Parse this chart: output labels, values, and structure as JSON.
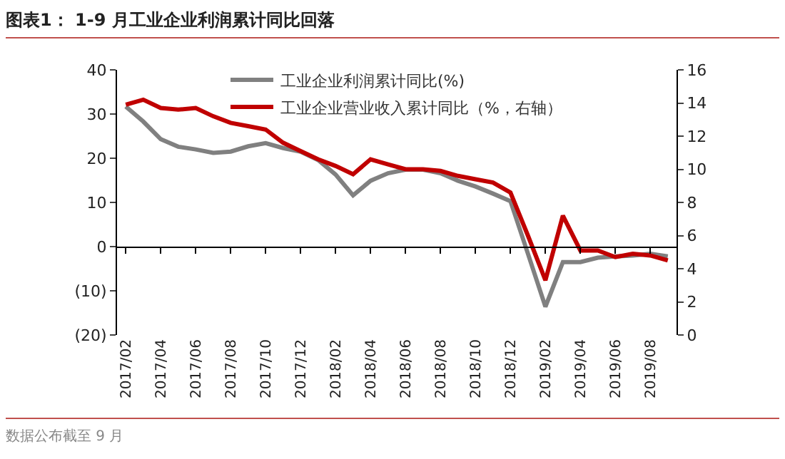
{
  "chart_data": {
    "type": "line",
    "title": "图表1： 1-9 月工业企业利润累计同比回落",
    "annotations": [
      "数据公布截至 9 月"
    ],
    "categories": [
      "2017/02",
      null,
      "2017/04",
      null,
      "2017/06",
      null,
      "2017/08",
      null,
      "2017/10",
      null,
      "2017/12",
      null,
      "2018/02",
      null,
      "2018/04",
      null,
      "2018/06",
      null,
      "2018/08",
      null,
      "2018/10",
      null,
      "2018/12",
      null,
      "2019/02",
      null,
      "2019/04",
      null,
      "2019/06",
      null,
      "2019/08",
      null
    ],
    "series": [
      {
        "name": "工业企业利润累计同比(%)",
        "color": "#808080",
        "values": [
          31.7,
          28.3,
          24.3,
          22.6,
          22.0,
          21.2,
          21.5,
          22.7,
          23.4,
          22.3,
          21.5,
          19.6,
          16.3,
          11.6,
          14.9,
          16.6,
          17.4,
          17.4,
          16.6,
          14.9,
          13.6,
          12.0,
          10.3,
          -1.6,
          -13.6,
          -3.5,
          -3.5,
          -2.5,
          -2.2,
          -2.0,
          -1.6,
          -2.2
        ]
      },
      {
        "name": "工业企业营业收入累计同比（%，右轴）",
        "color": "#c00000",
        "axis": "y2",
        "values": [
          13.9,
          14.2,
          13.7,
          13.6,
          13.7,
          13.2,
          12.8,
          12.6,
          12.4,
          11.6,
          11.1,
          10.6,
          10.2,
          9.7,
          10.6,
          10.3,
          10.0,
          10.0,
          9.9,
          9.6,
          9.4,
          9.2,
          8.6,
          6.0,
          3.3,
          7.2,
          5.1,
          5.1,
          4.7,
          4.9,
          4.8,
          4.5
        ]
      }
    ],
    "ylim": [
      -20,
      40
    ],
    "yticks": [
      {
        "value": -20,
        "label": "(20)"
      },
      {
        "value": -10,
        "label": "(10)"
      },
      0,
      10,
      20,
      30,
      40
    ],
    "y2lim": [
      0,
      16
    ],
    "y2ticks": [
      0,
      2,
      4,
      6,
      8,
      10,
      12,
      14,
      16
    ],
    "ref_lines": [
      {
        "axis": "y",
        "value": 0,
        "color": "#000000"
      }
    ],
    "legend": "top",
    "grid": false,
    "line_style": "solid"
  }
}
